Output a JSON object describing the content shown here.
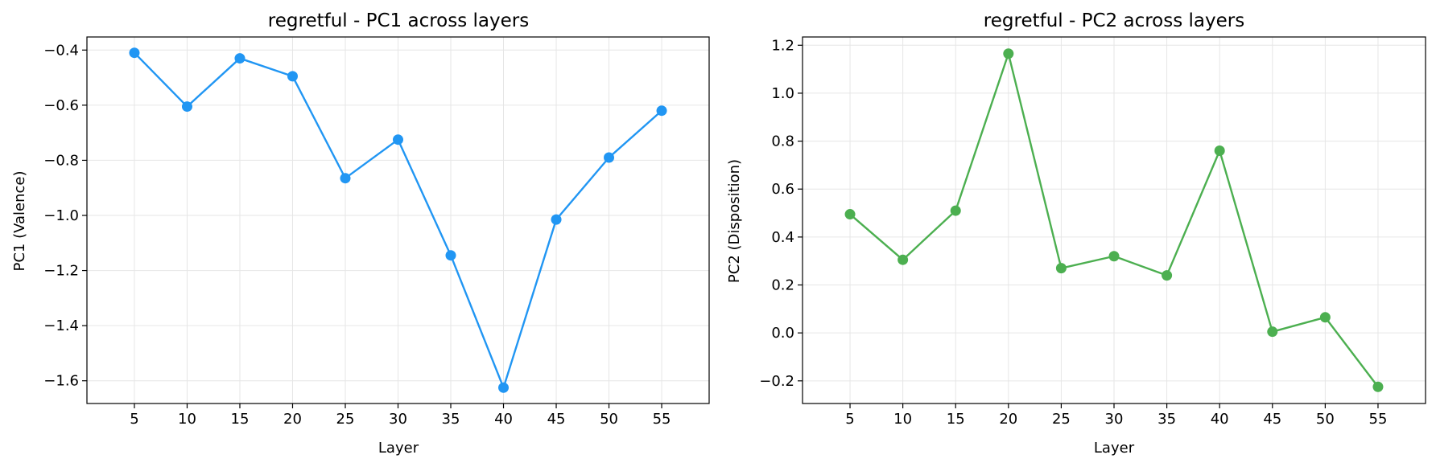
{
  "chart_data": [
    {
      "type": "line",
      "title": "regretful - PC1 across layers",
      "xlabel": "Layer",
      "ylabel": "PC1 (Valence)",
      "x": [
        5,
        10,
        15,
        20,
        25,
        30,
        35,
        40,
        45,
        50,
        55
      ],
      "series": [
        {
          "values": [
            -0.41,
            -0.605,
            -0.43,
            -0.495,
            -0.865,
            -0.725,
            -1.145,
            -1.625,
            -1.015,
            -0.79,
            -0.62
          ],
          "color": "#2196F3"
        }
      ],
      "xticks": [
        5,
        10,
        15,
        20,
        25,
        30,
        35,
        40,
        45,
        50,
        55
      ],
      "xlim": [
        0.5,
        59.5
      ],
      "yticks": [
        -1.6,
        -1.4,
        -1.2,
        -1.0,
        -0.8,
        -0.6,
        -0.4
      ],
      "ytick_labels": [
        "−1.6",
        "−1.4",
        "−1.2",
        "−1.0",
        "−0.8",
        "−0.6",
        "−0.4"
      ],
      "ylim": [
        -1.6825,
        -0.3525
      ],
      "grid": true
    },
    {
      "type": "line",
      "title": "regretful - PC2 across layers",
      "xlabel": "Layer",
      "ylabel": "PC2 (Disposition)",
      "x": [
        5,
        10,
        15,
        20,
        25,
        30,
        35,
        40,
        45,
        50,
        55
      ],
      "series": [
        {
          "values": [
            0.495,
            0.305,
            0.51,
            1.165,
            0.27,
            0.32,
            0.24,
            0.76,
            0.005,
            0.065,
            -0.225
          ],
          "color": "#4CAF50"
        }
      ],
      "xticks": [
        5,
        10,
        15,
        20,
        25,
        30,
        35,
        40,
        45,
        50,
        55
      ],
      "xlim": [
        0.5,
        59.5
      ],
      "yticks": [
        -0.2,
        0.0,
        0.2,
        0.4,
        0.6,
        0.8,
        1.0,
        1.2
      ],
      "ytick_labels": [
        "−0.2",
        "0.0",
        "0.2",
        "0.4",
        "0.6",
        "0.8",
        "1.0",
        "1.2"
      ],
      "ylim": [
        -0.2945,
        1.2345
      ],
      "grid": true
    }
  ]
}
